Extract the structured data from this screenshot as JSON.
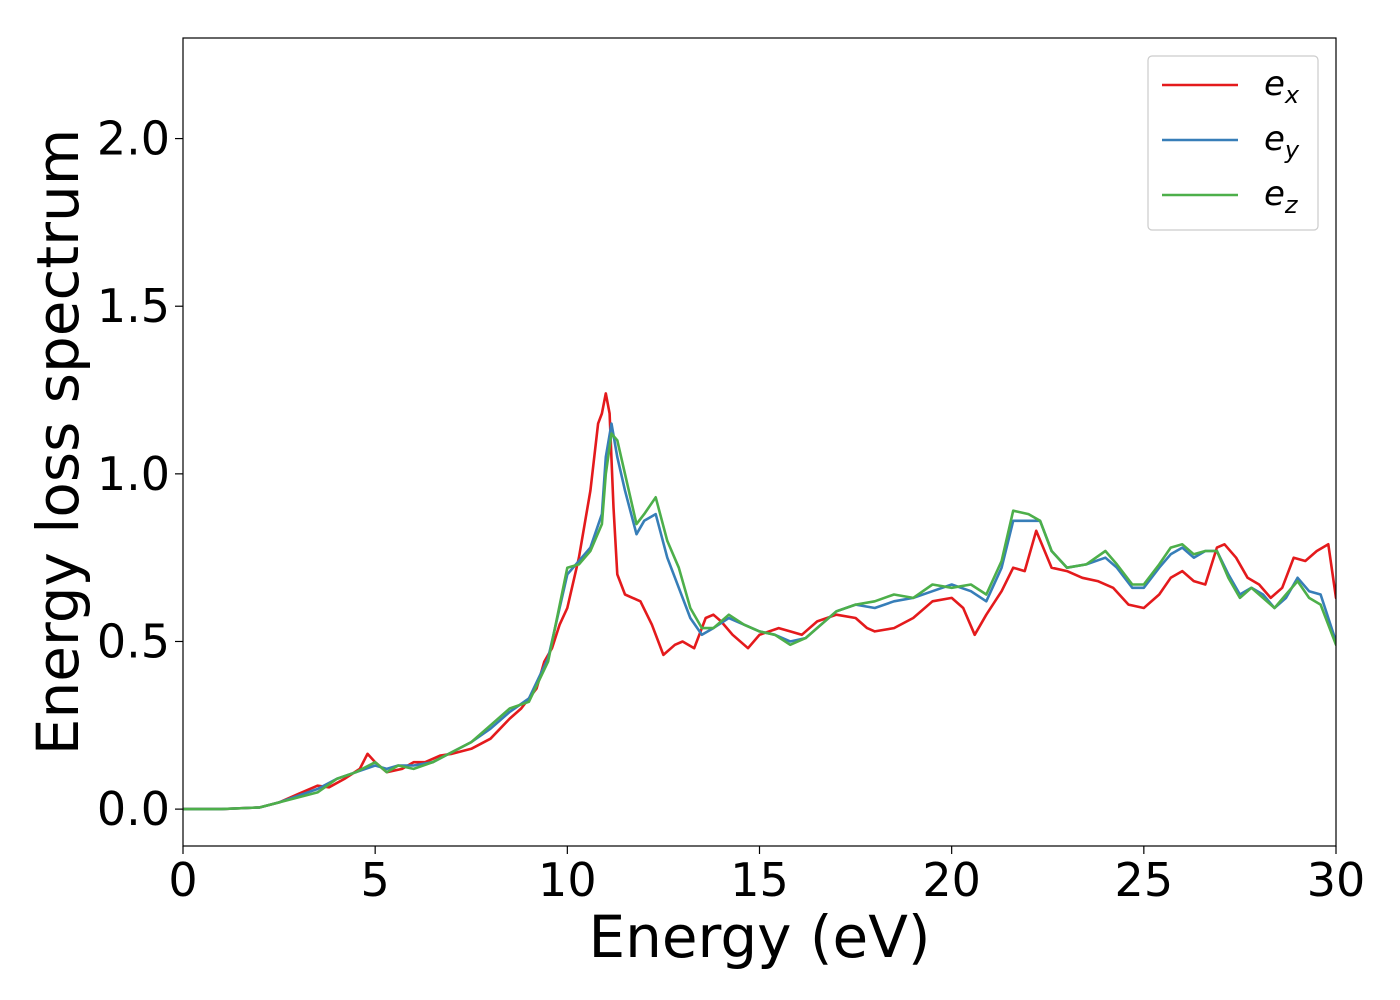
{
  "chart_data": {
    "type": "line",
    "title": "",
    "xlabel": "Energy (eV)",
    "ylabel": "Energy loss spectrum",
    "xlim": [
      0,
      30
    ],
    "ylim": [
      -0.11,
      2.3
    ],
    "xticks": [
      0,
      5,
      10,
      15,
      20,
      25,
      30
    ],
    "xtick_labels": [
      "0",
      "5",
      "10",
      "15",
      "20",
      "25",
      "30"
    ],
    "yticks": [
      0.0,
      0.5,
      1.0,
      1.5,
      2.0
    ],
    "ytick_labels": [
      "0.0",
      "0.5",
      "1.0",
      "1.5",
      "2.0"
    ],
    "grid": false,
    "legend_position": "top-right",
    "series": [
      {
        "name": "e_x",
        "label_base": "e",
        "label_sub": "x",
        "color": "#e41a1c",
        "x": [
          0,
          1,
          2,
          2.5,
          3,
          3.5,
          3.8,
          4.2,
          4.6,
          4.8,
          5.0,
          5.3,
          5.7,
          6.0,
          6.3,
          6.7,
          7.0,
          7.5,
          8.0,
          8.5,
          8.8,
          9.2,
          9.4,
          9.6,
          9.8,
          10.0,
          10.3,
          10.6,
          10.8,
          10.9,
          11.0,
          11.1,
          11.2,
          11.3,
          11.5,
          11.7,
          11.9,
          12.2,
          12.5,
          12.8,
          13.0,
          13.3,
          13.6,
          13.8,
          14.0,
          14.3,
          14.7,
          15.0,
          15.5,
          15.8,
          16.1,
          16.5,
          17.0,
          17.5,
          17.8,
          18.0,
          18.5,
          19.0,
          19.5,
          20.0,
          20.3,
          20.6,
          20.9,
          21.3,
          21.6,
          21.9,
          22.2,
          22.6,
          23.0,
          23.4,
          23.8,
          24.2,
          24.6,
          25.0,
          25.4,
          25.7,
          26.0,
          26.3,
          26.6,
          26.9,
          27.1,
          27.4,
          27.7,
          28.0,
          28.3,
          28.6,
          28.9,
          29.2,
          29.5,
          29.8,
          30.0
        ],
        "y": [
          0.0,
          0.0,
          0.005,
          0.02,
          0.045,
          0.07,
          0.065,
          0.09,
          0.12,
          0.165,
          0.14,
          0.11,
          0.12,
          0.14,
          0.14,
          0.16,
          0.165,
          0.18,
          0.21,
          0.27,
          0.3,
          0.36,
          0.44,
          0.48,
          0.55,
          0.6,
          0.75,
          0.95,
          1.15,
          1.18,
          1.24,
          1.18,
          0.9,
          0.7,
          0.64,
          0.63,
          0.62,
          0.55,
          0.46,
          0.49,
          0.5,
          0.48,
          0.57,
          0.58,
          0.56,
          0.52,
          0.48,
          0.52,
          0.54,
          0.53,
          0.52,
          0.56,
          0.58,
          0.57,
          0.54,
          0.53,
          0.54,
          0.57,
          0.62,
          0.63,
          0.6,
          0.52,
          0.58,
          0.65,
          0.72,
          0.71,
          0.83,
          0.72,
          0.71,
          0.69,
          0.68,
          0.66,
          0.61,
          0.6,
          0.64,
          0.69,
          0.71,
          0.68,
          0.67,
          0.78,
          0.79,
          0.75,
          0.69,
          0.67,
          0.63,
          0.66,
          0.75,
          0.74,
          0.77,
          0.79,
          0.63
        ]
      },
      {
        "name": "e_y",
        "label_base": "e",
        "label_sub": "y",
        "color": "#377eb8",
        "x": [
          0,
          1,
          2,
          2.5,
          3,
          3.5,
          4.0,
          4.5,
          5.0,
          5.3,
          5.6,
          6.0,
          6.5,
          7.0,
          7.5,
          8.0,
          8.5,
          9.0,
          9.5,
          10.0,
          10.3,
          10.6,
          10.9,
          11.0,
          11.15,
          11.3,
          11.5,
          11.8,
          12.0,
          12.3,
          12.6,
          12.9,
          13.2,
          13.5,
          13.8,
          14.2,
          14.6,
          15.0,
          15.4,
          15.8,
          16.2,
          16.6,
          17.0,
          17.5,
          18.0,
          18.5,
          19.0,
          19.5,
          20.0,
          20.5,
          20.9,
          21.3,
          21.6,
          22.0,
          22.3,
          22.6,
          23.0,
          23.5,
          24.0,
          24.3,
          24.7,
          25.0,
          25.4,
          25.7,
          26.0,
          26.3,
          26.6,
          26.9,
          27.2,
          27.5,
          27.8,
          28.1,
          28.4,
          28.7,
          29.0,
          29.3,
          29.6,
          30.0
        ],
        "y": [
          0.0,
          0.0,
          0.005,
          0.02,
          0.04,
          0.06,
          0.09,
          0.11,
          0.13,
          0.12,
          0.13,
          0.13,
          0.14,
          0.17,
          0.2,
          0.24,
          0.29,
          0.33,
          0.45,
          0.7,
          0.74,
          0.78,
          0.88,
          1.05,
          1.15,
          1.05,
          0.95,
          0.82,
          0.86,
          0.88,
          0.75,
          0.66,
          0.57,
          0.52,
          0.54,
          0.57,
          0.55,
          0.53,
          0.52,
          0.5,
          0.51,
          0.55,
          0.59,
          0.61,
          0.6,
          0.62,
          0.63,
          0.65,
          0.67,
          0.65,
          0.62,
          0.72,
          0.86,
          0.86,
          0.86,
          0.77,
          0.72,
          0.73,
          0.75,
          0.72,
          0.66,
          0.66,
          0.72,
          0.76,
          0.78,
          0.75,
          0.77,
          0.77,
          0.7,
          0.64,
          0.66,
          0.64,
          0.6,
          0.63,
          0.69,
          0.65,
          0.64,
          0.5
        ]
      },
      {
        "name": "e_z",
        "label_base": "e",
        "label_sub": "z",
        "color": "#4daf4a",
        "x": [
          0,
          1,
          2,
          2.5,
          3,
          3.5,
          4.0,
          4.5,
          5.0,
          5.3,
          5.6,
          6.0,
          6.5,
          7.0,
          7.5,
          8.0,
          8.5,
          9.0,
          9.5,
          10.0,
          10.3,
          10.6,
          10.9,
          11.0,
          11.15,
          11.3,
          11.5,
          11.8,
          12.0,
          12.3,
          12.6,
          12.9,
          13.2,
          13.5,
          13.8,
          14.2,
          14.6,
          15.0,
          15.4,
          15.8,
          16.2,
          16.6,
          17.0,
          17.5,
          18.0,
          18.5,
          19.0,
          19.5,
          20.0,
          20.5,
          20.9,
          21.3,
          21.6,
          22.0,
          22.3,
          22.6,
          23.0,
          23.5,
          24.0,
          24.3,
          24.7,
          25.0,
          25.4,
          25.7,
          26.0,
          26.3,
          26.6,
          26.9,
          27.2,
          27.5,
          27.8,
          28.1,
          28.4,
          28.7,
          29.0,
          29.3,
          29.6,
          30.0
        ],
        "y": [
          0.0,
          0.0,
          0.005,
          0.02,
          0.035,
          0.05,
          0.09,
          0.11,
          0.14,
          0.11,
          0.13,
          0.12,
          0.14,
          0.17,
          0.2,
          0.25,
          0.3,
          0.32,
          0.44,
          0.72,
          0.73,
          0.77,
          0.85,
          1.0,
          1.12,
          1.1,
          1.0,
          0.85,
          0.88,
          0.93,
          0.8,
          0.72,
          0.6,
          0.54,
          0.54,
          0.58,
          0.55,
          0.53,
          0.52,
          0.49,
          0.51,
          0.55,
          0.59,
          0.61,
          0.62,
          0.64,
          0.63,
          0.67,
          0.66,
          0.67,
          0.64,
          0.74,
          0.89,
          0.88,
          0.86,
          0.77,
          0.72,
          0.73,
          0.77,
          0.73,
          0.67,
          0.67,
          0.73,
          0.78,
          0.79,
          0.76,
          0.77,
          0.77,
          0.69,
          0.63,
          0.66,
          0.63,
          0.6,
          0.64,
          0.68,
          0.63,
          0.61,
          0.49
        ]
      }
    ]
  }
}
